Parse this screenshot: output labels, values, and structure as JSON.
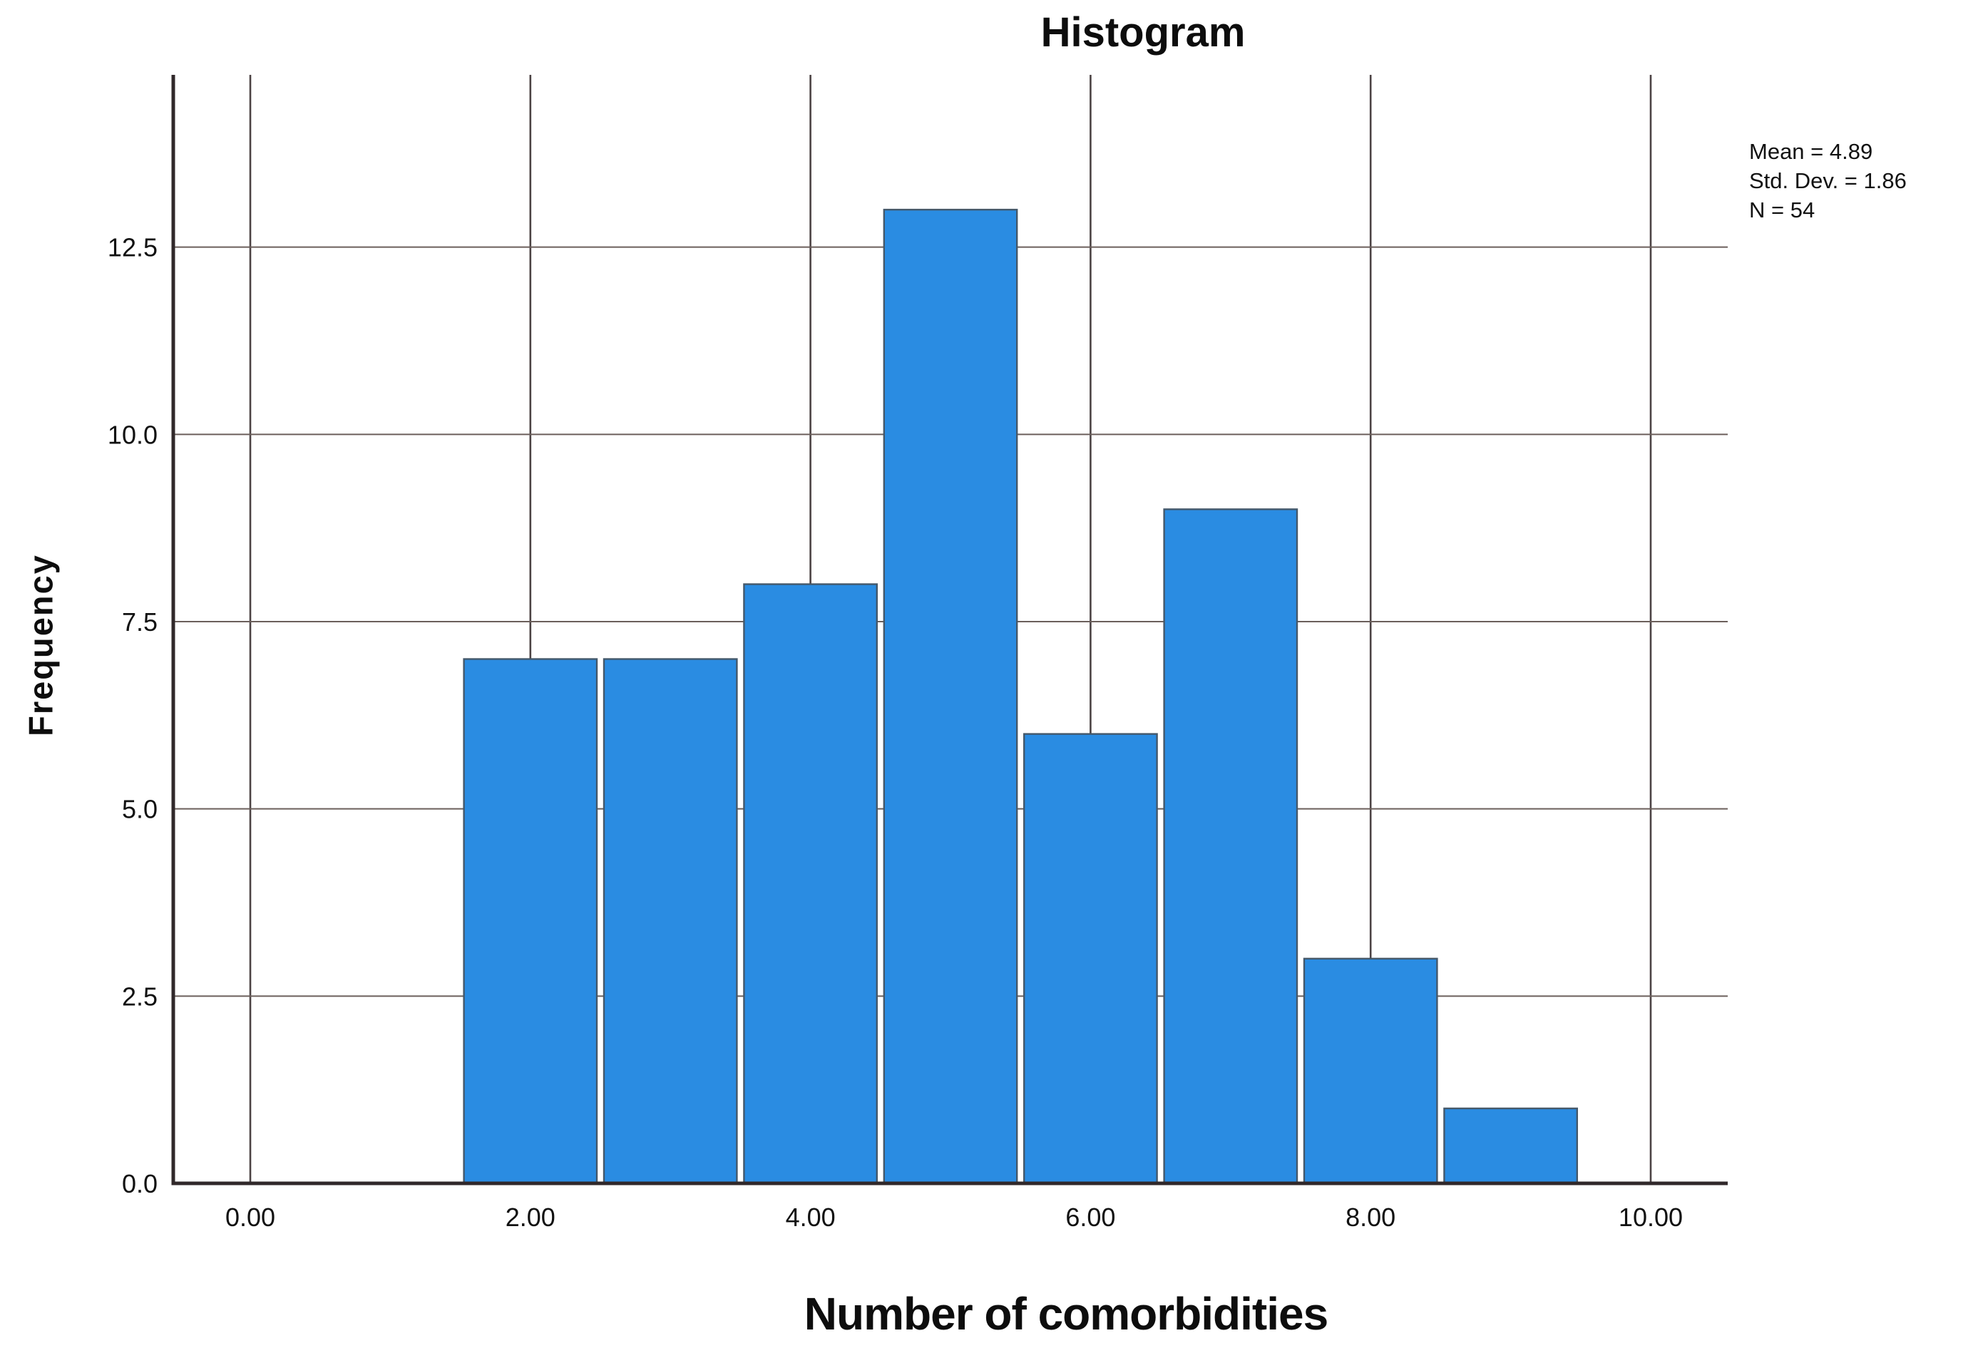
{
  "title": "Histogram",
  "chart_data": {
    "type": "bar",
    "title": "Histogram",
    "xlabel": "Number of comorbidities",
    "ylabel": "Frequency",
    "categories": [
      2,
      3,
      4,
      5,
      6,
      7,
      8,
      9
    ],
    "values": [
      7,
      7,
      8,
      13,
      6,
      9,
      3,
      1
    ],
    "bar_width": 1.0,
    "xlim": [
      -0.55,
      10.55
    ],
    "ylim": [
      0,
      14.8
    ],
    "x_ticks": [
      0,
      2,
      4,
      6,
      8,
      10
    ],
    "x_tick_labels": [
      "0.00",
      "2.00",
      "4.00",
      "6.00",
      "8.00",
      "10.00"
    ],
    "y_ticks": [
      0,
      2.5,
      5,
      7.5,
      10,
      12.5
    ],
    "y_tick_labels": [
      "0.0",
      "2.5",
      "5.0",
      "7.5",
      "10.0",
      "12.5"
    ],
    "grid": true,
    "legend_position": "none",
    "annotations": [
      "Mean = 4.89",
      "Std. Dev. = 1.86",
      "N = 54"
    ],
    "bar_color": "#2A8CE2",
    "colors": {
      "bar_border": "#44586a",
      "v_grid": "#4c4344",
      "h_grid": "#6b5f5b",
      "axis": "#30282a",
      "tick_text": "#111111"
    }
  }
}
